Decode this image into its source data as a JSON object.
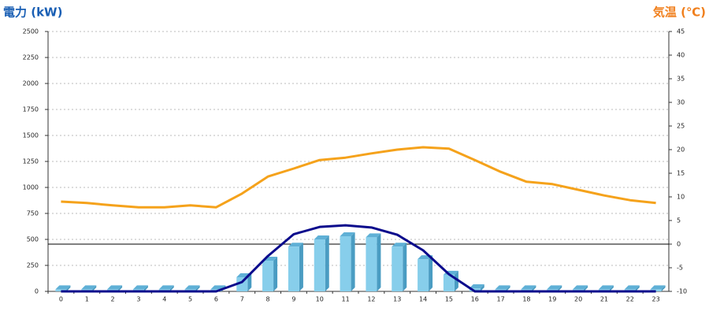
{
  "chart_data": {
    "type": "combo",
    "y_label": "電力 (kW)",
    "y2_label": "気温 (℃)",
    "categories": [
      "0",
      "1",
      "2",
      "3",
      "4",
      "5",
      "6",
      "7",
      "8",
      "9",
      "10",
      "11",
      "12",
      "13",
      "14",
      "15",
      "16",
      "17",
      "18",
      "19",
      "20",
      "21",
      "22",
      "23"
    ],
    "series": [
      {
        "type": "bar",
        "color": "#87ceeb",
        "values": [
          20,
          20,
          20,
          20,
          20,
          20,
          20,
          136,
          295,
          430,
          500,
          530,
          520,
          430,
          310,
          160,
          30,
          20,
          20,
          20,
          20,
          20,
          20,
          20
        ]
      },
      {
        "type": "line",
        "color": "#0a0a8c",
        "values": [
          0,
          0,
          0,
          0,
          0,
          0,
          0,
          90,
          340,
          550,
          620,
          635,
          615,
          545,
          395,
          165,
          0,
          0,
          0,
          0,
          0,
          0,
          0,
          0
        ]
      },
      {
        "type": "line",
        "color": "#f5a21b",
        "axis": "y2",
        "values": [
          9,
          8.7,
          8.2,
          7.8,
          7.8,
          8.2,
          7.8,
          10.7,
          14.3,
          16,
          17.8,
          18.3,
          19.2,
          20,
          20.5,
          20.2,
          17.8,
          15.3,
          13.2,
          12.7,
          11.5,
          10.3,
          9.3,
          8.7
        ]
      }
    ],
    "ylim": [
      0,
      2500
    ],
    "yticks": [
      0,
      250,
      500,
      750,
      1000,
      1250,
      1500,
      1750,
      2000,
      2250,
      2500
    ],
    "y2lim": [
      -10,
      45
    ],
    "y2ticks": [
      -10,
      -5,
      0,
      5,
      10,
      15,
      20,
      25,
      30,
      35,
      40,
      45
    ],
    "grid": true
  }
}
